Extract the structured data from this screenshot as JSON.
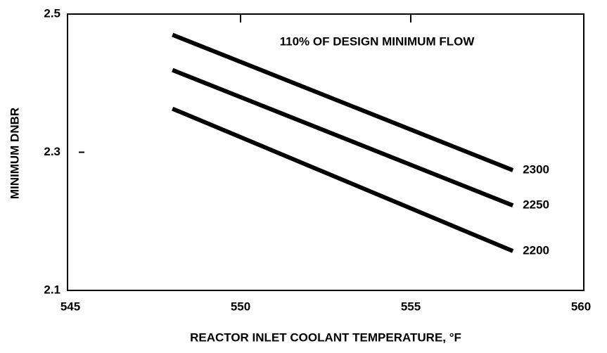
{
  "chart_data": {
    "type": "line",
    "annotation": "110% OF DESIGN MINIMUM FLOW",
    "xlabel": "REACTOR INLET COOLANT TEMPERATURE, °F",
    "ylabel": "MINIMUM DNBR",
    "x": [
      548,
      558
    ],
    "series": [
      {
        "name": "2300",
        "color": "#000000",
        "values": [
          2.47,
          2.274
        ]
      },
      {
        "name": "2250",
        "color": "#000000",
        "values": [
          2.419,
          2.223
        ]
      },
      {
        "name": "2200",
        "color": "#000000",
        "values": [
          2.363,
          2.157
        ]
      }
    ],
    "xlim": [
      545,
      560
    ],
    "xticks": [
      545,
      550,
      555,
      560
    ],
    "ylim": [
      2.1,
      2.5
    ],
    "yticks": [
      2.1,
      2.3,
      2.5
    ]
  }
}
